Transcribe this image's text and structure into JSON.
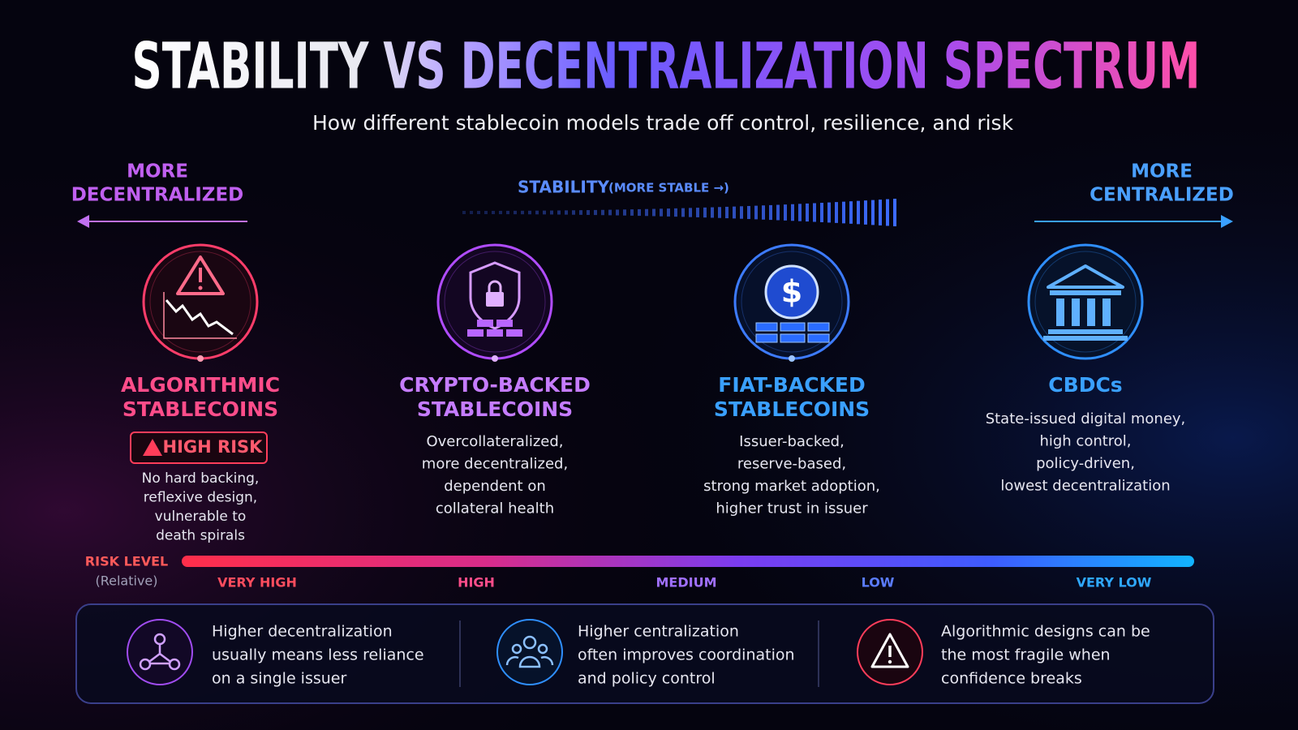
{
  "title": "STABILITY VS DECENTRALIZATION SPECTRUM",
  "subtitle": "How different stablecoin models trade off control, resilience, and risk",
  "left_label": [
    "MORE",
    "DECENTRALIZED"
  ],
  "right_label": [
    "MORE",
    "CENTRALIZED"
  ],
  "stability_label": {
    "main": "STABILITY",
    "hint": "(MORE STABLE →)"
  },
  "nodes": [
    {
      "name": [
        "ALGORITHMIC",
        "STABLECOINS"
      ],
      "badge": "HIGH RISK",
      "description": [
        "No hard backing,",
        "reflexive design,",
        "vulnerable to",
        "death spirals"
      ]
    },
    {
      "name": [
        "CRYPTO-BACKED",
        "STABLECOINS"
      ],
      "description": [
        "Overcollateralized,",
        "more decentralized,",
        "dependent on",
        "collateral health"
      ]
    },
    {
      "name": [
        "FIAT-BACKED",
        "STABLECOINS"
      ],
      "description": [
        "Issuer-backed,",
        "reserve-based,",
        "strong market adoption,",
        "higher trust in issuer"
      ]
    },
    {
      "name": [
        "CBDCs"
      ],
      "description": [
        "State-issued digital money,",
        "high control,",
        "policy-driven,",
        "lowest decentralization"
      ]
    }
  ],
  "risk_scale": {
    "label": "RISK LEVEL",
    "sublabel": "(Relative)",
    "levels": [
      "VERY HIGH",
      "HIGH",
      "MEDIUM",
      "LOW",
      "VERY LOW"
    ]
  },
  "notes": [
    {
      "lines": [
        "Higher decentralization",
        "usually means less reliance",
        "on a single issuer"
      ]
    },
    {
      "lines": [
        "Higher centralization",
        "often improves coordination",
        "and policy control"
      ]
    },
    {
      "lines": [
        "Algorithmic designs can be",
        "the most fragile when",
        "confidence breaks"
      ]
    }
  ]
}
